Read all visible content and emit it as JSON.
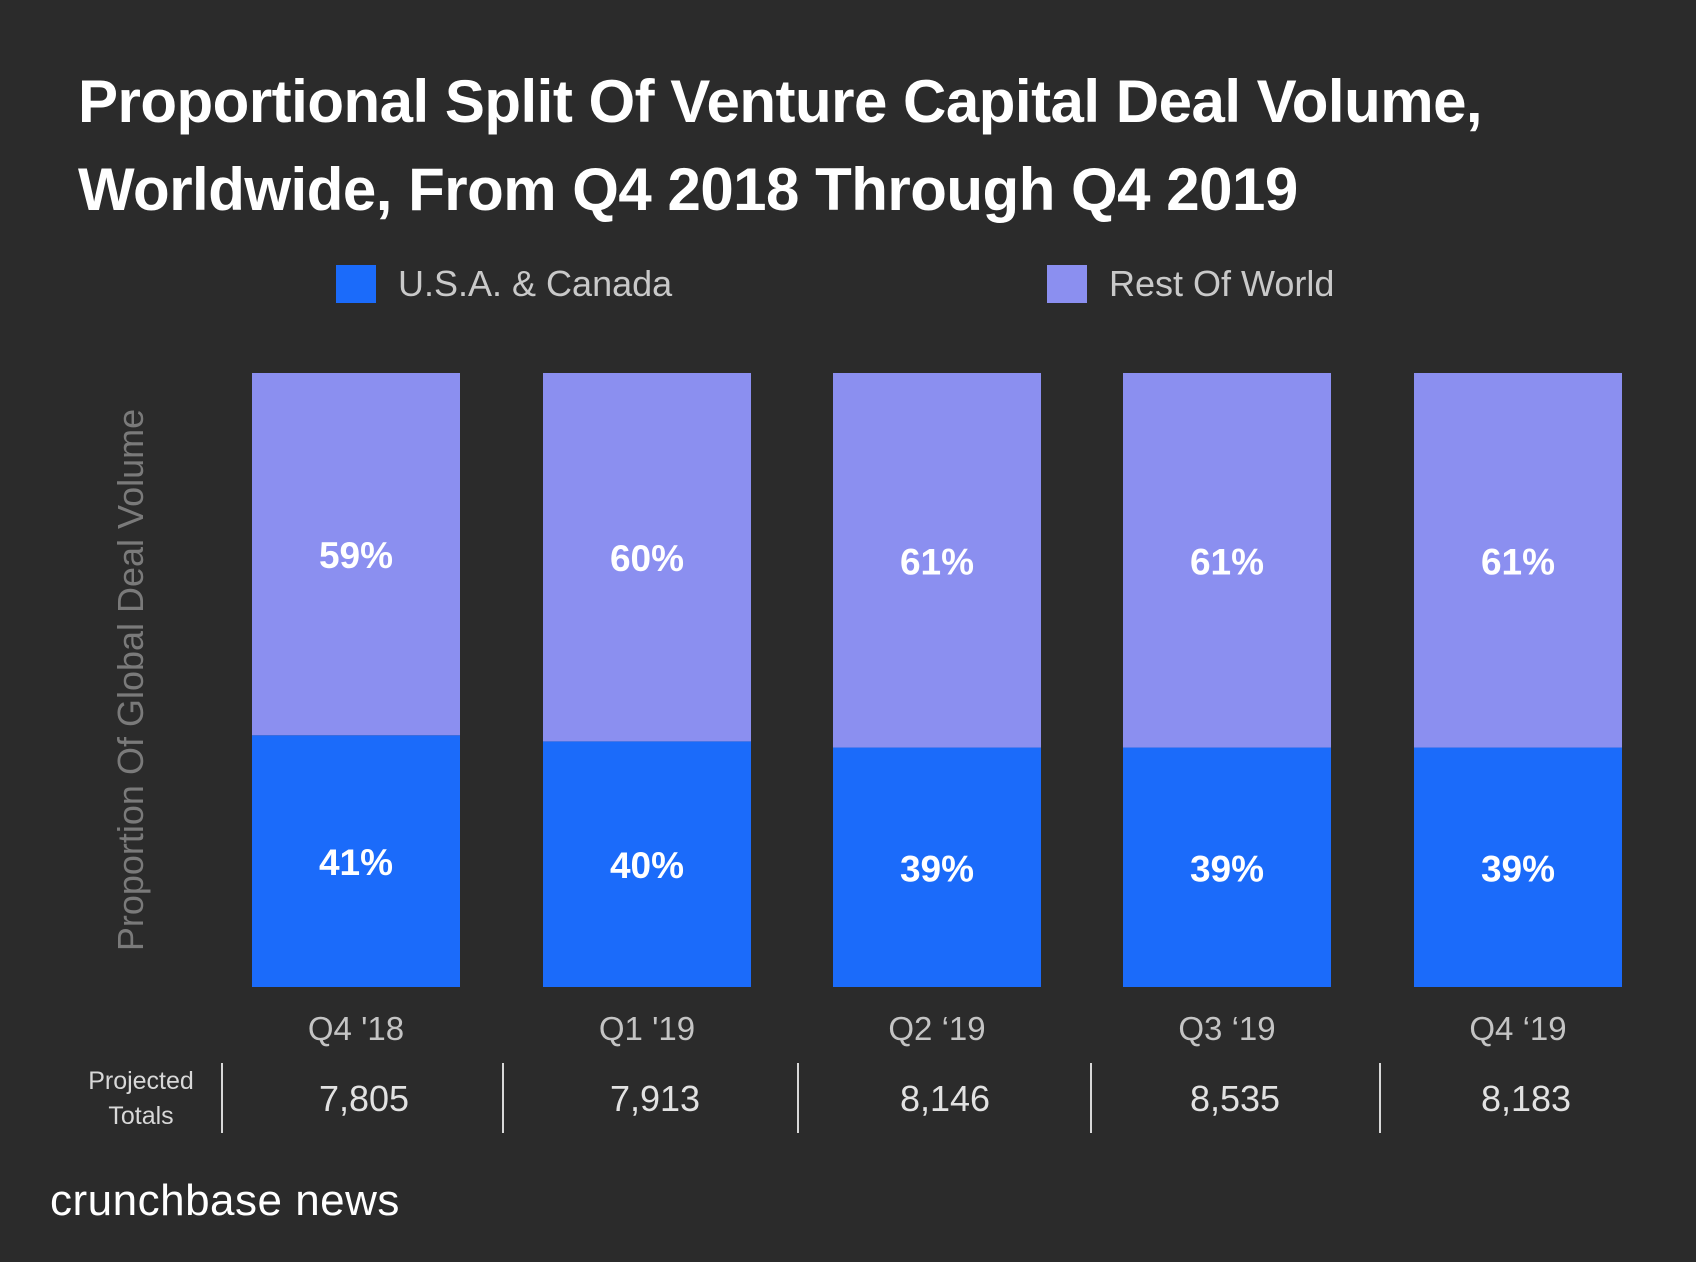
{
  "chart_data": {
    "type": "bar",
    "stacked": true,
    "normalized": true,
    "title_lines": [
      "Proportional Split Of Venture Capital Deal Volume,",
      "Worldwide, From Q4 2018 Through Q4 2019"
    ],
    "categories": [
      "Q4 '18",
      "Q1 '19",
      "Q2 ‘19",
      "Q3 ‘19",
      "Q4 ‘19"
    ],
    "series": [
      {
        "name": "U.S.A. & Canada",
        "color": "#1b6bfa",
        "values": [
          41,
          40,
          39,
          39,
          39
        ],
        "labels": [
          "41%",
          "40%",
          "39%",
          "39%",
          "39%"
        ]
      },
      {
        "name": "Rest Of World",
        "color": "#8b8ff0",
        "values": [
          59,
          60,
          61,
          61,
          61
        ],
        "labels": [
          "59%",
          "60%",
          "61%",
          "61%",
          "61%"
        ]
      }
    ],
    "xlabel": "",
    "ylabel": "Proportion Of Global Deal Volume",
    "ylim": [
      0,
      100
    ],
    "grid": false,
    "legend_position": "top",
    "table": {
      "row_label_lines": [
        "Projected",
        "Totals"
      ],
      "values": [
        "7,805",
        "7,913",
        "8,146",
        "8,535",
        "8,183"
      ]
    }
  },
  "brand": "crunchbase news",
  "colors": {
    "background": "#2b2b2b",
    "usa_canada": "#1b6bfa",
    "rest_of_world": "#8b8ff0"
  }
}
